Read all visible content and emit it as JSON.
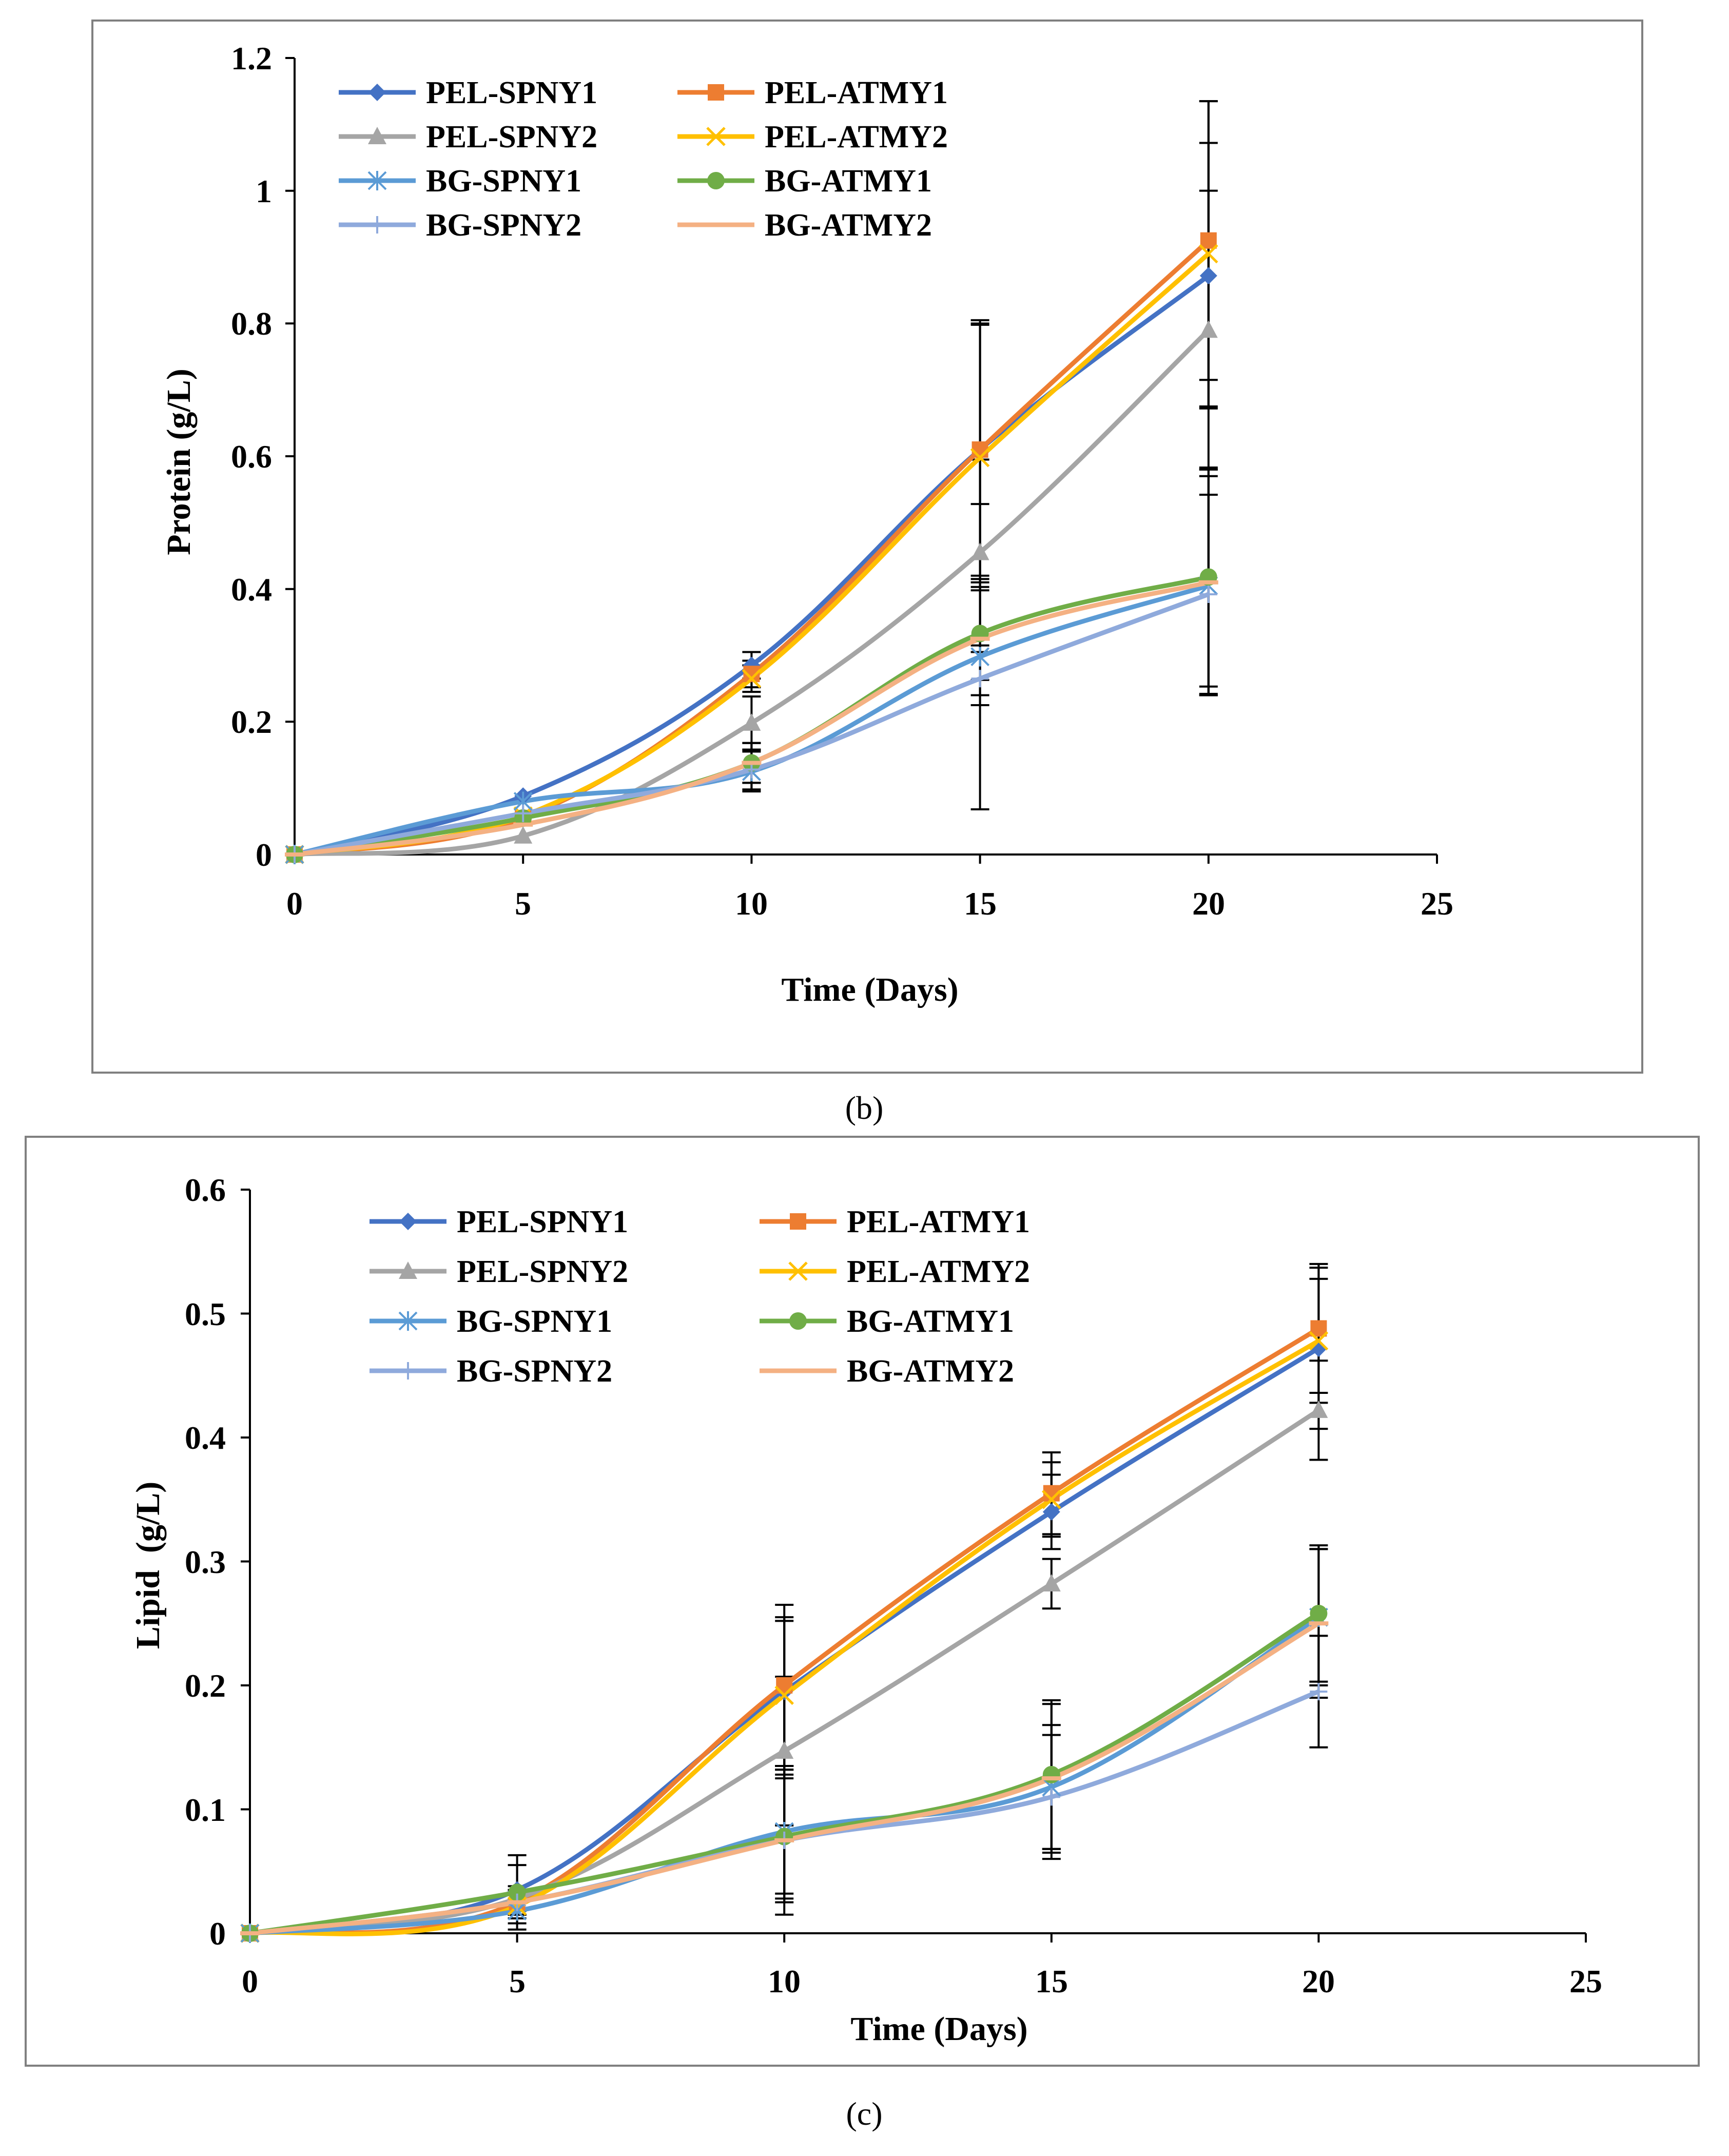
{
  "colors": {
    "PEL-SPNY1": "#4472C4",
    "PEL-ATMY1": "#ED7D31",
    "PEL-SPNY2": "#A5A5A5",
    "PEL-ATMY2": "#FFC000",
    "BG-SPNY1": "#5B9BD5",
    "BG-ATMY1": "#70AD47",
    "BG-SPNY2": "#8FAADC",
    "BG-ATMY2": "#F4B183",
    "frame": "#808080",
    "errorbar": "#000000"
  },
  "chart_data": [
    {
      "type": "line",
      "caption": "(b)",
      "xlabel": "Time (Days)",
      "ylabel": "Protein (g/L)",
      "xlim": [
        0,
        25
      ],
      "ylim": [
        0,
        1.2
      ],
      "x_ticks": [
        "0",
        "5",
        "10",
        "15",
        "20",
        "25"
      ],
      "y_ticks": [
        "0",
        "0.2",
        "0.4",
        "0.6",
        "0.8",
        "1",
        "1.2"
      ],
      "x": [
        0,
        5,
        10,
        15,
        20
      ],
      "series": [
        {
          "name": "PEL-SPNY1",
          "marker": "diamond",
          "values": [
            0,
            0.088,
            0.285,
            0.61,
            0.872
          ],
          "errors": [
            0,
            0,
            0.02,
            0.19,
            0.2
          ]
        },
        {
          "name": "PEL-ATMY1",
          "marker": "square",
          "values": [
            0,
            0.055,
            0.272,
            0.61,
            0.925
          ],
          "errors": [
            0,
            0,
            0.02,
            0.195,
            0.21
          ]
        },
        {
          "name": "PEL-SPNY2",
          "marker": "triangle",
          "values": [
            0,
            0.028,
            0.198,
            0.455,
            0.79
          ],
          "errors": [
            0,
            0,
            0.04,
            0.14,
            0.21
          ]
        },
        {
          "name": "PEL-ATMY2",
          "marker": "x",
          "values": [
            0,
            0.058,
            0.265,
            0.598,
            0.905
          ],
          "errors": [
            0,
            0,
            0.02,
            0.2,
            0.23
          ]
        },
        {
          "name": "BG-SPNY1",
          "marker": "star",
          "values": [
            0,
            0.08,
            0.125,
            0.298,
            0.405
          ],
          "errors": [
            0,
            0,
            0.03,
            0.23,
            0.165
          ]
        },
        {
          "name": "BG-ATMY1",
          "marker": "circle",
          "values": [
            0,
            0.055,
            0.138,
            0.333,
            0.418
          ],
          "errors": [
            0,
            0,
            0.03,
            0.07,
            0.165
          ]
        },
        {
          "name": "BG-SPNY2",
          "marker": "plus",
          "values": [
            0,
            0.062,
            0.128,
            0.265,
            0.392
          ],
          "errors": [
            0,
            0,
            0.03,
            0.04,
            0.15
          ]
        },
        {
          "name": "BG-ATMY2",
          "marker": "dash",
          "values": [
            0,
            0.045,
            0.138,
            0.325,
            0.41
          ],
          "errors": [
            0,
            0,
            0.03,
            0.085,
            0.17
          ]
        }
      ],
      "legend": "top-left, two columns"
    },
    {
      "type": "line",
      "caption": "(c)",
      "xlabel": "Time (Days)",
      "ylabel": "Lipid  (g/L)",
      "xlim": [
        0,
        25
      ],
      "ylim": [
        0,
        0.6
      ],
      "x_ticks": [
        "0",
        "5",
        "10",
        "15",
        "20",
        "25"
      ],
      "y_ticks": [
        "0",
        "0.1",
        "0.2",
        "0.3",
        "0.4",
        "0.5",
        "0.6"
      ],
      "x": [
        0,
        5,
        10,
        15,
        20
      ],
      "series": [
        {
          "name": "PEL-SPNY1",
          "marker": "diamond",
          "values": [
            0,
            0.035,
            0.195,
            0.34,
            0.472
          ],
          "errors": [
            0,
            0.02,
            0.06,
            0.03,
            0.065
          ]
        },
        {
          "name": "PEL-ATMY1",
          "marker": "square",
          "values": [
            0,
            0.025,
            0.2,
            0.355,
            0.488
          ],
          "errors": [
            0,
            0.01,
            0.065,
            0.033,
            0.052
          ]
        },
        {
          "name": "PEL-SPNY2",
          "marker": "triangle",
          "values": [
            0,
            0.028,
            0.147,
            0.282,
            0.422
          ],
          "errors": [
            0,
            0.01,
            0.06,
            0.02,
            0.04
          ]
        },
        {
          "name": "PEL-ATMY2",
          "marker": "x",
          "values": [
            0,
            0.022,
            0.192,
            0.35,
            0.478
          ],
          "errors": [
            0,
            0.01,
            0.06,
            0.03,
            0.05
          ]
        },
        {
          "name": "BG-SPNY1",
          "marker": "star",
          "values": [
            0,
            0.018,
            0.082,
            0.118,
            0.255
          ],
          "errors": [
            0,
            0.01,
            0.05,
            0.05,
            0.055
          ]
        },
        {
          "name": "BG-ATMY1",
          "marker": "circle",
          "values": [
            0,
            0.033,
            0.078,
            0.128,
            0.258
          ],
          "errors": [
            0,
            0.03,
            0.05,
            0.06,
            0.055
          ]
        },
        {
          "name": "BG-SPNY2",
          "marker": "plus",
          "values": [
            0,
            0.025,
            0.075,
            0.11,
            0.195
          ],
          "errors": [
            0,
            0.01,
            0.06,
            0.05,
            0.045
          ]
        },
        {
          "name": "BG-ATMY2",
          "marker": "dash",
          "values": [
            0,
            0.025,
            0.075,
            0.125,
            0.25
          ],
          "errors": [
            0,
            0.01,
            0.05,
            0.06,
            0.06
          ]
        }
      ],
      "legend": "top-left, two columns"
    }
  ]
}
